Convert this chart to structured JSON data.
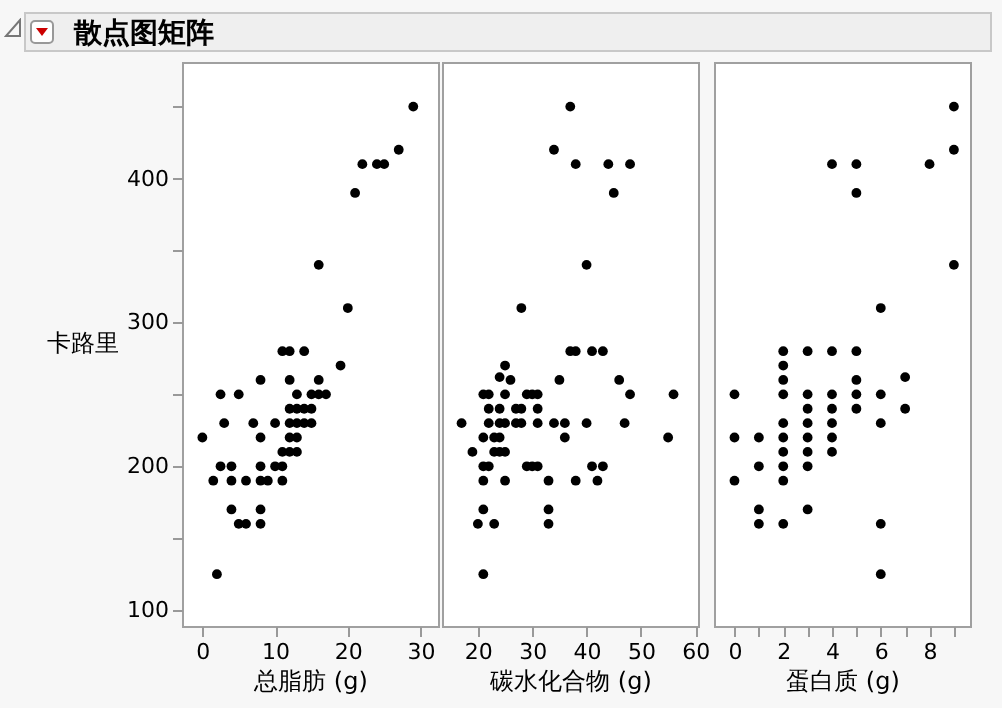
{
  "chart_data": [
    {
      "type": "scatter",
      "title": "散点图矩阵",
      "ylabel": "卡路里",
      "xlabel": "总脂肪 (g)",
      "xlim": [
        -2.8,
        32.4
      ],
      "xticks": [
        0,
        10,
        20,
        30
      ],
      "ylim": [
        89,
        481
      ],
      "yticks": [
        100,
        {
          "value": 150,
          "label": null
        },
        200,
        {
          "value": 250,
          "label": null
        },
        300,
        {
          "value": 350,
          "label": null
        },
        400,
        {
          "value": 450,
          "label": null
        }
      ],
      "grid": false,
      "marker": "circle",
      "x": [
        29,
        27,
        22,
        24,
        25,
        21,
        16,
        20,
        11,
        12,
        14,
        19,
        8,
        12,
        null,
        16,
        2.5,
        5,
        13,
        15,
        16,
        17,
        12,
        13,
        14,
        15,
        3,
        7,
        10,
        12,
        13,
        14,
        15,
        0,
        8,
        12,
        13,
        11,
        12,
        13,
        2.5,
        4,
        8,
        10,
        11,
        1.5,
        4,
        6,
        8,
        9,
        11,
        4,
        8,
        5,
        6,
        8,
        2
      ],
      "series": [
        {
          "color": "#000000",
          "values": [
            450,
            420,
            410,
            410,
            410,
            390,
            340,
            310,
            280,
            280,
            280,
            270,
            260,
            260,
            null,
            260,
            250,
            250,
            250,
            250,
            250,
            250,
            240,
            240,
            240,
            240,
            230,
            230,
            230,
            230,
            230,
            230,
            230,
            220,
            220,
            220,
            220,
            210,
            210,
            210,
            200,
            200,
            200,
            200,
            200,
            190,
            190,
            190,
            190,
            190,
            190,
            170,
            170,
            160,
            160,
            160,
            125
          ]
        }
      ]
    },
    {
      "type": "scatter",
      "xlabel": "碳水化合物 (g)",
      "xlim": [
        13.4,
        60.5
      ],
      "xticks": [
        20,
        30,
        40,
        50,
        60
      ],
      "ylim": [
        89,
        481
      ],
      "tick_labels": "x",
      "grid": false,
      "marker": "circle",
      "x": [
        37,
        34,
        38,
        44,
        48,
        45,
        40,
        28,
        37,
        38,
        41,
        43,
        25,
        24,
        26,
        35,
        46,
        21,
        22,
        25,
        29,
        30,
        31,
        48,
        56,
        22,
        24,
        27,
        28,
        31,
        17,
        22,
        24,
        25,
        27,
        28,
        31,
        34,
        36,
        40,
        47,
        21,
        23,
        24,
        36,
        55,
        19,
        23,
        24,
        25,
        21,
        22,
        29,
        30,
        31,
        41,
        43,
        21,
        25,
        33,
        38,
        42,
        21,
        33,
        20,
        23,
        33,
        21
      ],
      "series": [
        {
          "color": "#000000",
          "values": [
            450,
            420,
            410,
            410,
            410,
            390,
            340,
            310,
            280,
            280,
            280,
            280,
            270,
            262,
            260,
            260,
            260,
            250,
            250,
            250,
            250,
            250,
            250,
            250,
            250,
            240,
            240,
            240,
            240,
            240,
            230,
            230,
            230,
            230,
            230,
            230,
            230,
            230,
            230,
            230,
            230,
            220,
            220,
            220,
            220,
            220,
            210,
            210,
            210,
            210,
            200,
            200,
            200,
            200,
            200,
            200,
            200,
            190,
            190,
            190,
            190,
            190,
            170,
            170,
            160,
            160,
            160,
            125
          ]
        }
      ]
    },
    {
      "type": "scatter",
      "xlabel": "蛋白质 (g)",
      "xlim": [
        -0.84,
        9.66
      ],
      "xticks": [
        0,
        {
          "value": 1,
          "label": null
        },
        2,
        {
          "value": 3,
          "label": null
        },
        4,
        {
          "value": 5,
          "label": null
        },
        6,
        {
          "value": 7,
          "label": null
        },
        8,
        {
          "value": 9,
          "label": null
        }
      ],
      "ylim": [
        89,
        481
      ],
      "tick_labels": "x",
      "grid": false,
      "marker": "circle",
      "x": [
        9,
        9,
        4,
        5,
        8,
        5,
        9,
        6,
        2,
        3,
        4,
        5,
        2,
        7,
        2,
        5,
        0,
        2,
        3,
        4,
        5,
        6,
        3,
        4,
        5,
        7,
        2,
        3,
        4,
        6,
        0,
        1,
        2,
        3,
        4,
        2,
        3,
        4,
        1,
        2,
        3,
        0,
        2,
        1,
        3,
        1,
        2,
        6,
        6
      ],
      "series": [
        {
          "color": "#000000",
          "values": [
            450,
            420,
            410,
            410,
            410,
            390,
            340,
            310,
            280,
            280,
            280,
            280,
            270,
            262,
            260,
            260,
            250,
            250,
            250,
            250,
            250,
            250,
            240,
            240,
            240,
            240,
            230,
            230,
            230,
            230,
            220,
            220,
            220,
            220,
            220,
            210,
            210,
            210,
            200,
            200,
            200,
            190,
            190,
            170,
            170,
            160,
            160,
            160,
            125
          ]
        }
      ]
    }
  ]
}
